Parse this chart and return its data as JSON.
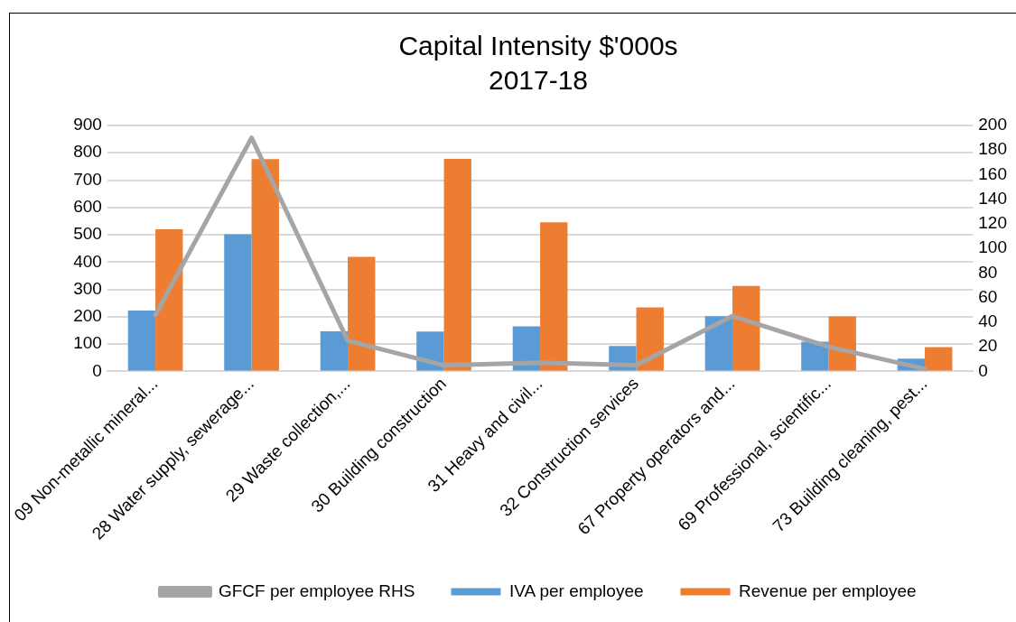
{
  "chart_data": {
    "type": "bar",
    "title": "Capital Intensity $'000s",
    "subtitle": "2017-18",
    "categories": [
      "09 Non-metallic mineral...",
      "28 Water supply, sewerage...",
      "29 Waste collection,...",
      "30 Building construction",
      "31 Heavy and civil...",
      "32 Construction services",
      "67 Property operators and...",
      "69 Professional, scientific...",
      "73 Building cleaning, pest..."
    ],
    "series": [
      {
        "name": "IVA per employee",
        "color": "#5b9bd5",
        "values": [
          223,
          502,
          147,
          146,
          165,
          93,
          202,
          109,
          47
        ]
      },
      {
        "name": "Revenue per employee",
        "color": "#ed7d31",
        "values": [
          520,
          777,
          419,
          778,
          546,
          234,
          313,
          201,
          89
        ]
      },
      {
        "name": "GFCF per employee RHS",
        "type": "line",
        "axis": "y2",
        "color": "#a5a5a5",
        "values": [
          46,
          190,
          25,
          5,
          7,
          5,
          45,
          20,
          2
        ]
      }
    ],
    "ylim": [
      0,
      900
    ],
    "yticks": [
      0,
      100,
      200,
      300,
      400,
      500,
      600,
      700,
      800,
      900
    ],
    "y2lim": [
      0,
      200
    ],
    "y2ticks": [
      0,
      20,
      40,
      60,
      80,
      100,
      120,
      140,
      160,
      180,
      200
    ],
    "grid": "y",
    "legend": "bottom",
    "marker": "none"
  }
}
